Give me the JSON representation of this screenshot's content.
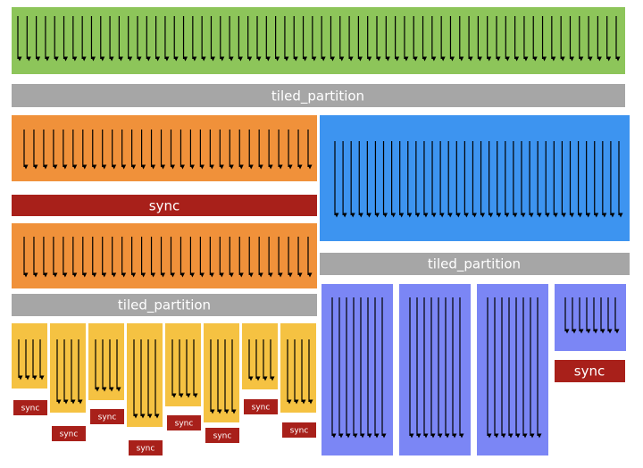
{
  "top_partition": {
    "label": "tiled_partition"
  },
  "left": {
    "sync": "sync",
    "partition": "tiled_partition",
    "small_syncs": [
      "sync",
      "sync",
      "sync",
      "sync",
      "sync",
      "sync",
      "sync",
      "sync"
    ]
  },
  "right": {
    "partition": "tiled_partition",
    "sync": "sync"
  }
}
